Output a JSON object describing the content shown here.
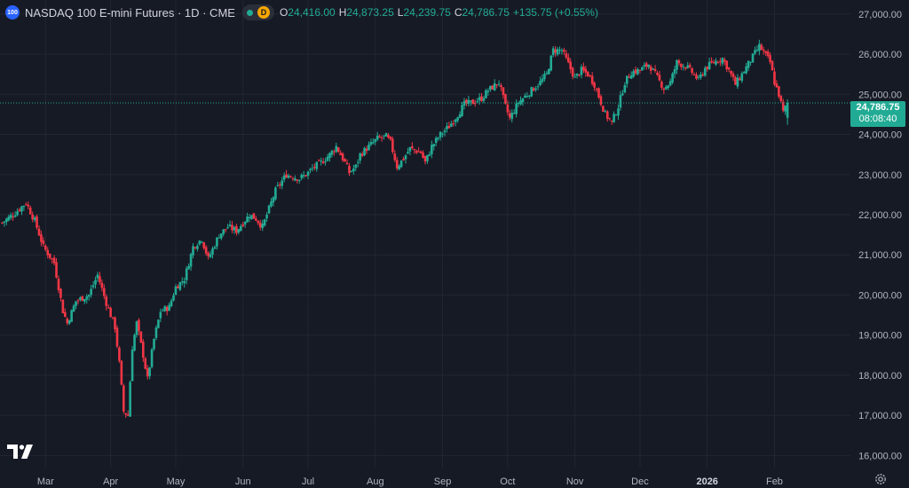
{
  "legend": {
    "symbol_badge": "100",
    "title": "NASDAQ 100 E-mini Futures · 1D · CME",
    "interval_badge": "D",
    "o_label": "O",
    "o_value": "24,416.00",
    "h_label": "H",
    "h_value": "24,873.25",
    "l_label": "L",
    "l_value": "24,239.75",
    "c_label": "C",
    "c_value": "24,786.75",
    "change": "+135.75 (+0.55%)"
  },
  "price_tag": {
    "price": "24,786.75",
    "countdown": "08:08:40"
  },
  "icons": {
    "logo": "tradingview-logo-icon",
    "settings": "gear-icon"
  },
  "colors": {
    "up": "#22ab94",
    "down": "#f23645",
    "background": "#161a25",
    "grid": "#232632",
    "axis_text": "#b2b5be"
  },
  "chart_data": {
    "type": "candlestick",
    "title": "NASDAQ 100 E-mini Futures · 1D · CME",
    "y_ticks": [
      16000,
      17000,
      18000,
      19000,
      20000,
      21000,
      22000,
      23000,
      24000,
      25000,
      26000,
      27000
    ],
    "y_tick_labels": [
      "16,000.00",
      "17,000.00",
      "18,000.00",
      "19,000.00",
      "20,000.00",
      "21,000.00",
      "22,000.00",
      "23,000.00",
      "24,000.00",
      "25,000.00",
      "26,000.00",
      "27,000.00"
    ],
    "ylim": [
      15700,
      27350
    ],
    "x_ticks": [
      {
        "label": "Mar",
        "day": 10
      },
      {
        "label": "Apr",
        "day": 40
      },
      {
        "label": "May",
        "day": 70
      },
      {
        "label": "Jun",
        "day": 101
      },
      {
        "label": "Jul",
        "day": 131
      },
      {
        "label": "Aug",
        "day": 162
      },
      {
        "label": "Sep",
        "day": 193
      },
      {
        "label": "Oct",
        "day": 223
      },
      {
        "label": "Nov",
        "day": 254
      },
      {
        "label": "Dec",
        "day": 284
      },
      {
        "label": "2026",
        "day": 315,
        "bold": true
      },
      {
        "label": "Feb",
        "day": 346
      }
    ],
    "xlim": [
      -11,
      381
    ],
    "last_price": 24786.75,
    "anchors": [
      [
        -10,
        21800
      ],
      [
        -4,
        22050
      ],
      [
        1,
        22300
      ],
      [
        5,
        21850
      ],
      [
        9,
        21200
      ],
      [
        14,
        20800
      ],
      [
        18,
        19600
      ],
      [
        20,
        19300
      ],
      [
        24,
        19850
      ],
      [
        30,
        20000
      ],
      [
        34,
        20500
      ],
      [
        38,
        19800
      ],
      [
        42,
        19200
      ],
      [
        44,
        18300
      ],
      [
        46,
        17100
      ],
      [
        48,
        17000
      ],
      [
        50,
        18700
      ],
      [
        52,
        19300
      ],
      [
        55,
        18500
      ],
      [
        57,
        17900
      ],
      [
        60,
        18900
      ],
      [
        63,
        19600
      ],
      [
        67,
        19700
      ],
      [
        70,
        20200
      ],
      [
        74,
        20400
      ],
      [
        78,
        21200
      ],
      [
        82,
        21400
      ],
      [
        85,
        20900
      ],
      [
        90,
        21500
      ],
      [
        94,
        21700
      ],
      [
        98,
        21600
      ],
      [
        104,
        22000
      ],
      [
        107,
        21900
      ],
      [
        110,
        21700
      ],
      [
        116,
        22600
      ],
      [
        121,
        23000
      ],
      [
        127,
        22900
      ],
      [
        130,
        23000
      ],
      [
        134,
        23200
      ],
      [
        137,
        23300
      ],
      [
        141,
        23500
      ],
      [
        144,
        23700
      ],
      [
        148,
        23300
      ],
      [
        150,
        23050
      ],
      [
        153,
        23200
      ],
      [
        155,
        23500
      ],
      [
        159,
        23700
      ],
      [
        163,
        23900
      ],
      [
        167,
        23950
      ],
      [
        169,
        23800
      ],
      [
        172,
        23200
      ],
      [
        175,
        23400
      ],
      [
        178,
        23650
      ],
      [
        183,
        23550
      ],
      [
        185,
        23300
      ],
      [
        188,
        23700
      ],
      [
        192,
        24000
      ],
      [
        196,
        24200
      ],
      [
        200,
        24500
      ],
      [
        203,
        24750
      ],
      [
        207,
        24800
      ],
      [
        211,
        24900
      ],
      [
        214,
        25100
      ],
      [
        219,
        25300
      ],
      [
        222,
        24700
      ],
      [
        224,
        24400
      ],
      [
        228,
        24800
      ],
      [
        232,
        25000
      ],
      [
        235,
        25150
      ],
      [
        238,
        25300
      ],
      [
        241,
        25500
      ],
      [
        244,
        26100
      ],
      [
        248,
        26100
      ],
      [
        251,
        25750
      ],
      [
        254,
        25400
      ],
      [
        257,
        25600
      ],
      [
        260,
        25500
      ],
      [
        263,
        25250
      ],
      [
        266,
        24800
      ],
      [
        268,
        24500
      ],
      [
        271,
        24300
      ],
      [
        274,
        24700
      ],
      [
        277,
        25300
      ],
      [
        280,
        25550
      ],
      [
        284,
        25600
      ],
      [
        288,
        25750
      ],
      [
        291,
        25500
      ],
      [
        295,
        25150
      ],
      [
        298,
        25300
      ],
      [
        301,
        25800
      ],
      [
        305,
        25700
      ],
      [
        308,
        25550
      ],
      [
        311,
        25350
      ],
      [
        314,
        25650
      ],
      [
        318,
        25800
      ],
      [
        322,
        25900
      ],
      [
        325,
        25600
      ],
      [
        328,
        25250
      ],
      [
        331,
        25500
      ],
      [
        335,
        25850
      ],
      [
        339,
        26200
      ],
      [
        341,
        26050
      ],
      [
        344,
        25800
      ],
      [
        346,
        25300
      ],
      [
        348,
        25000
      ],
      [
        350,
        24550
      ],
      [
        352,
        24786.75
      ]
    ]
  }
}
